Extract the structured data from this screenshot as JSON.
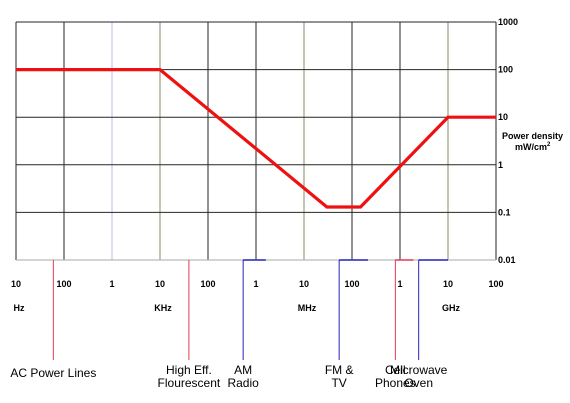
{
  "chart_data": {
    "type": "line",
    "x_scale": "log",
    "y_scale": "log",
    "x_tick_labels": [
      "10",
      "100",
      "1",
      "10",
      "100",
      "1",
      "10",
      "100",
      "1",
      "10",
      "100"
    ],
    "x_unit_labels": [
      {
        "label": "Hz",
        "at": 10
      },
      {
        "label": "KHz",
        "at": 10000
      },
      {
        "label": "MHz",
        "at": 10000000
      },
      {
        "label": "GHz",
        "at": 10000000000
      }
    ],
    "x_range_hz": [
      10,
      100000000000
    ],
    "y_ticks": [
      "1000",
      "100",
      "10",
      "1",
      "0.1",
      "0.01"
    ],
    "ylim": [
      0.01,
      1000
    ],
    "ylabel": "Power density",
    "ylabel_unit": "mW/cm",
    "ylabel_unit_sup": "2",
    "grid": true,
    "series": [
      {
        "color": "#ee1111",
        "x_hz": [
          10,
          10000,
          30000000,
          150000000,
          10000000000,
          100000000000
        ],
        "y": [
          100,
          100,
          0.13,
          0.13,
          10,
          10
        ]
      }
    ],
    "sources": [
      {
        "label_lines": [
          "AC Power Lines"
        ],
        "color": "#e63950",
        "freq_from": 60,
        "freq_to": 60
      },
      {
        "label_lines": [
          "High Eff.",
          "Flourescent"
        ],
        "color": "#e63950",
        "freq_from": 40000,
        "freq_to": 40000
      },
      {
        "label_lines": [
          "AM",
          "Radio"
        ],
        "color": "#2222bb",
        "freq_from": 540000,
        "freq_to": 1600000
      },
      {
        "label_lines": [
          "FM &",
          "TV"
        ],
        "color": "#2222bb",
        "freq_from": 54000000,
        "freq_to": 216000000
      },
      {
        "label_lines": [
          "Cell",
          "Phones"
        ],
        "color": "#e63950",
        "freq_from": 800000000,
        "freq_to": 1900000000
      },
      {
        "label_lines": [
          "Microwave",
          "Oven"
        ],
        "color": "#2222bb",
        "freq_from": 2450000000,
        "freq_to": 2450000000
      },
      {
        "label_lines": [],
        "color": "#2222bb",
        "freq_from": 2450000000,
        "freq_to": 10000000000
      }
    ]
  }
}
